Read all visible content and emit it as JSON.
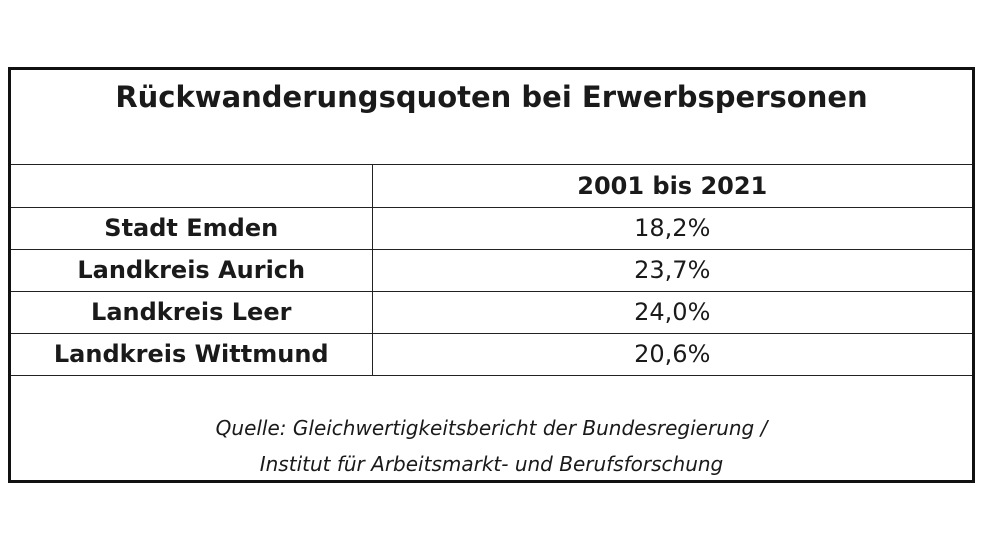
{
  "table": {
    "title": "Rückwanderungsquoten bei Erwerbspersonen",
    "column_header": "2001 bis 2021",
    "rows": [
      {
        "label": "Stadt Emden",
        "value": "18,2%"
      },
      {
        "label": "Landkreis Aurich",
        "value": "23,7%"
      },
      {
        "label": "Landkreis Leer",
        "value": "24,0%"
      },
      {
        "label": "Landkreis Wittmund",
        "value": "20,6%"
      }
    ],
    "source_line1": "Quelle: Gleichwertigkeitsbericht der Bundesregierung /",
    "source_line2": "Institut für Arbeitsmarkt- und Berufsforschung"
  }
}
